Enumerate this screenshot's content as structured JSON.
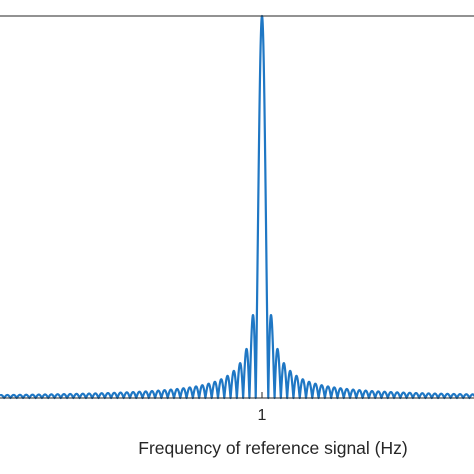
{
  "chart_data": {
    "type": "line",
    "title": "",
    "xlabel": "Frequency of reference signal (Hz)",
    "ylabel": "",
    "xlim": [
      0.6,
      1.4
    ],
    "ylim": [
      0,
      1
    ],
    "grid": false,
    "x_ticks": [
      {
        "value": 1,
        "label": "1"
      }
    ],
    "series": [
      {
        "color": "#1f77c4",
        "curve": "abs-sinc",
        "center": 1.0,
        "peak": 1.0,
        "main_lobe_halfwidth": 0.0096,
        "points": [
          [
            0.6,
            0.01
          ],
          [
            0.7,
            0.015
          ],
          [
            0.8,
            0.03
          ],
          [
            0.9,
            0.06
          ],
          [
            0.95,
            0.1
          ],
          [
            0.97,
            0.15
          ],
          [
            0.98,
            0.2
          ],
          [
            0.99,
            0.4
          ],
          [
            1.0,
            1.0
          ],
          [
            1.01,
            0.4
          ],
          [
            1.02,
            0.2
          ],
          [
            1.03,
            0.15
          ],
          [
            1.05,
            0.1
          ],
          [
            1.1,
            0.06
          ],
          [
            1.2,
            0.03
          ],
          [
            1.3,
            0.015
          ],
          [
            1.4,
            0.01
          ]
        ]
      }
    ]
  },
  "colors": {
    "line": "#1f77c4",
    "axis": "#262626",
    "background": "#ffffff"
  }
}
